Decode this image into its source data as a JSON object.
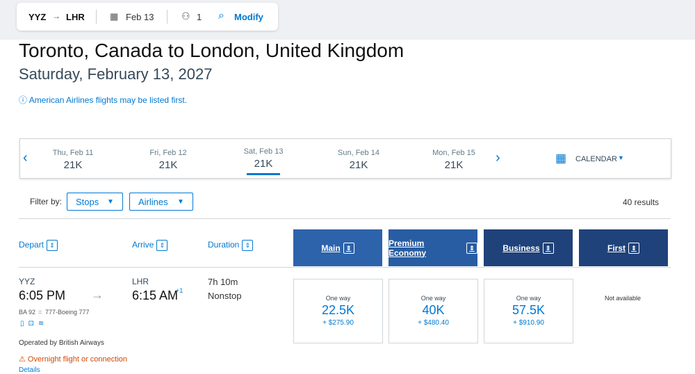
{
  "search": {
    "origin": "YYZ",
    "destination": "LHR",
    "date": "Feb 13",
    "passengers": "1",
    "modify": "Modify"
  },
  "header": {
    "title": "Toronto, Canada to London, United Kingdom",
    "date": "Saturday, February 13, 2027",
    "notice": "American Airlines flights may be listed first."
  },
  "date_strip": {
    "days": [
      {
        "label": "Thu, Feb 11",
        "price": "21K"
      },
      {
        "label": "Fri, Feb 12",
        "price": "21K"
      },
      {
        "label": "Sat, Feb 13",
        "price": "21K"
      },
      {
        "label": "Sun, Feb 14",
        "price": "21K"
      },
      {
        "label": "Mon, Feb 15",
        "price": "21K"
      }
    ],
    "calendar": "CALENDAR"
  },
  "filters": {
    "label": "Filter by:",
    "stops": "Stops",
    "airlines": "Airlines",
    "results": "40 results"
  },
  "columns": {
    "depart": "Depart",
    "arrive": "Arrive",
    "duration": "Duration",
    "cabins": [
      "Main",
      "Premium Economy",
      "Business",
      "First"
    ]
  },
  "flight": {
    "origin": "YYZ",
    "depart_time": "6:05 PM",
    "destination": "LHR",
    "arrive_time": "6:15 AM",
    "day_offset": "+1",
    "duration": "7h 10m",
    "stops": "Nonstop",
    "flight_number": "BA 92",
    "aircraft": "777-Boeing 777",
    "operator": "Operated by British Airways",
    "warning": "Overnight flight or connection",
    "details": "Details",
    "fares": [
      {
        "type": "One way",
        "miles": "22.5K",
        "cash": "+ $275.90"
      },
      {
        "type": "One way",
        "miles": "40K",
        "cash": "+ $480.40"
      },
      {
        "type": "One way",
        "miles": "57.5K",
        "cash": "+ $910.90"
      }
    ],
    "first_fare": "Not available"
  }
}
